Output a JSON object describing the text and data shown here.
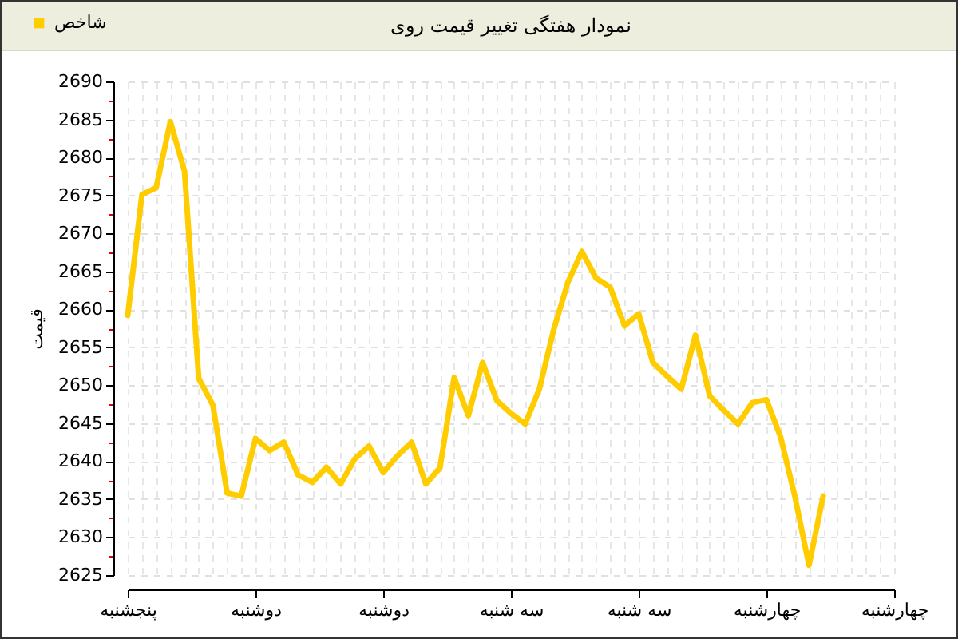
{
  "chart_data": {
    "type": "line",
    "title": "نمودار هفتگی تغییر قیمت روی",
    "ylabel": "قیمت",
    "categories": [
      "پنجشنبه",
      null,
      null,
      null,
      null,
      null,
      null,
      null,
      null,
      "دوشنبه",
      null,
      null,
      null,
      null,
      null,
      null,
      null,
      null,
      "دوشنبه",
      null,
      null,
      null,
      null,
      null,
      null,
      null,
      null,
      "سه شنبه",
      null,
      null,
      null,
      null,
      null,
      null,
      null,
      null,
      "سه شنبه",
      null,
      null,
      null,
      null,
      null,
      null,
      null,
      null,
      "چهارشنبه",
      null,
      null,
      null,
      null,
      null,
      null,
      null,
      null,
      "چهارشنبه"
    ],
    "series": [
      {
        "name": "شاخص",
        "color": "#ffcc00",
        "values": [
          2659.2,
          2675.1,
          2676,
          2684.7,
          2678.2,
          2650.9,
          2647.4,
          2635.8,
          2635.4,
          2643,
          2641.4,
          2642.5,
          2638.2,
          2637.2,
          2639.2,
          2637,
          2640.3,
          2642,
          2638.5,
          2640.7,
          2642.5,
          2637,
          2639.1,
          2651,
          2646,
          2653,
          2648,
          2646.3,
          2644.9,
          2649.5,
          2657.2,
          2663.5,
          2667.6,
          2664.1,
          2662.9,
          2657.8,
          2659.4,
          2653,
          2651.2,
          2649.5,
          2656.6,
          2648.6,
          2646.7,
          2644.9,
          2647.7,
          2648.1,
          2643.2,
          2635.4,
          2626.3,
          2635.4,
          null,
          null,
          null,
          null,
          null
        ]
      }
    ],
    "ylim": [
      2625,
      2690
    ],
    "yticks": [
      2625,
      {
        "value": 2627.5,
        "label": null
      },
      2630,
      {
        "value": 2632.5,
        "label": null
      },
      2635,
      {
        "value": 2637.5,
        "label": null
      },
      2640,
      {
        "value": 2642.5,
        "label": null
      },
      2645,
      {
        "value": 2647.5,
        "label": null
      },
      2650,
      {
        "value": 2652.5,
        "label": null
      },
      2655,
      {
        "value": 2657.5,
        "label": null
      },
      2660,
      {
        "value": 2662.5,
        "label": null
      },
      2665,
      {
        "value": 2667.5,
        "label": null
      },
      2670,
      {
        "value": 2672.5,
        "label": null
      },
      2675,
      {
        "value": 2677.5,
        "label": null
      },
      2680,
      {
        "value": 2682.5,
        "label": null
      },
      2685,
      {
        "value": 2687.5,
        "label": null
      },
      2690
    ],
    "grid": true,
    "legend": "top left"
  }
}
